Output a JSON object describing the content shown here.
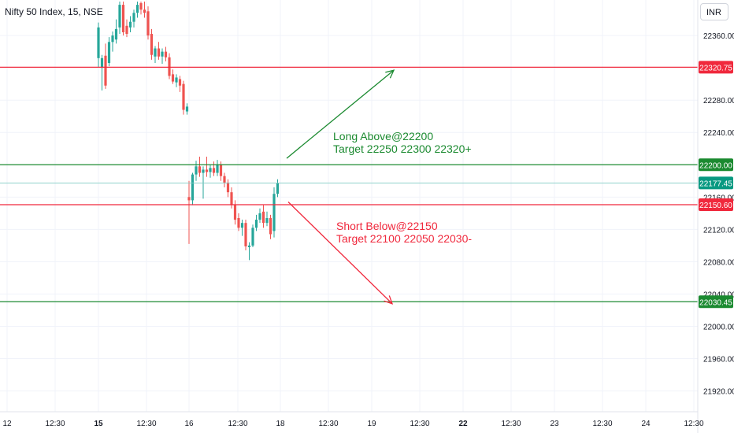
{
  "header": {
    "title": "Nifty 50 Index, 15, NSE",
    "currency": "INR"
  },
  "colors": {
    "up": "#26a69a",
    "down": "#ef5350",
    "red_line": "#f0283c",
    "green_line": "#1b8a30",
    "last_price": "#089981",
    "grid": "#f0f3fa",
    "axis_text": "#131722"
  },
  "chart_data": {
    "type": "candlestick",
    "title": "Nifty 50 Index, 15, NSE",
    "y_axis": {
      "ticks": [
        22360,
        22280,
        22240,
        22160,
        22120,
        22080,
        22040,
        22000,
        21960,
        21920
      ],
      "tick_labels": [
        "22360.00",
        "22280.00",
        "22240.00",
        "22160.00",
        "22120.00",
        "22080.00",
        "22040.00",
        "22000.00",
        "21960.00",
        "21920.00"
      ],
      "range": [
        21905,
        22402
      ]
    },
    "x_axis": {
      "range": [
        0,
        900
      ],
      "ticks": [
        {
          "x": 9,
          "label": "12",
          "bold": false
        },
        {
          "x": 70,
          "label": "12:30",
          "bold": false
        },
        {
          "x": 125,
          "label": "15",
          "bold": true
        },
        {
          "x": 186,
          "label": "12:30",
          "bold": false
        },
        {
          "x": 240,
          "label": "16",
          "bold": false
        },
        {
          "x": 302,
          "label": "12:30",
          "bold": false
        },
        {
          "x": 356,
          "label": "18",
          "bold": false
        },
        {
          "x": 417,
          "label": "12:30",
          "bold": false
        },
        {
          "x": 472,
          "label": "19",
          "bold": false
        },
        {
          "x": 533,
          "label": "12:30",
          "bold": false
        },
        {
          "x": 588,
          "label": "22",
          "bold": true
        },
        {
          "x": 649,
          "label": "12:30",
          "bold": false
        },
        {
          "x": 704,
          "label": "23",
          "bold": false
        },
        {
          "x": 765,
          "label": "12:30",
          "bold": false
        },
        {
          "x": 820,
          "label": "24",
          "bold": false
        },
        {
          "x": 881,
          "label": "12:30",
          "bold": false
        }
      ]
    },
    "candles": [
      {
        "x": 125,
        "o": 22332,
        "h": 22376,
        "l": 22321,
        "c": 22370
      },
      {
        "x": 129.5,
        "o": 22320,
        "h": 22336,
        "l": 22292,
        "c": 22332
      },
      {
        "x": 134,
        "o": 22335,
        "h": 22350,
        "l": 22294,
        "c": 22298
      },
      {
        "x": 138.5,
        "o": 22326,
        "h": 22358,
        "l": 22322,
        "c": 22352
      },
      {
        "x": 143,
        "o": 22352,
        "h": 22365,
        "l": 22340,
        "c": 22360
      },
      {
        "x": 147.5,
        "o": 22355,
        "h": 22380,
        "l": 22350,
        "c": 22368
      },
      {
        "x": 152,
        "o": 22370,
        "h": 22402,
        "l": 22362,
        "c": 22398
      },
      {
        "x": 156.5,
        "o": 22398,
        "h": 22402,
        "l": 22360,
        "c": 22364
      },
      {
        "x": 161,
        "o": 22372,
        "h": 22380,
        "l": 22358,
        "c": 22362
      },
      {
        "x": 165.5,
        "o": 22370,
        "h": 22384,
        "l": 22364,
        "c": 22377
      },
      {
        "x": 170,
        "o": 22377,
        "h": 22392,
        "l": 22370,
        "c": 22388
      },
      {
        "x": 174.5,
        "o": 22388,
        "h": 22402,
        "l": 22382,
        "c": 22398
      },
      {
        "x": 179,
        "o": 22400,
        "h": 22402,
        "l": 22386,
        "c": 22392
      },
      {
        "x": 183.5,
        "o": 22392,
        "h": 22402,
        "l": 22382,
        "c": 22388
      },
      {
        "x": 188,
        "o": 22390,
        "h": 22396,
        "l": 22355,
        "c": 22360
      },
      {
        "x": 192.5,
        "o": 22362,
        "h": 22368,
        "l": 22330,
        "c": 22336
      },
      {
        "x": 197,
        "o": 22334,
        "h": 22347,
        "l": 22326,
        "c": 22344
      },
      {
        "x": 201.5,
        "o": 22344,
        "h": 22352,
        "l": 22330,
        "c": 22334
      },
      {
        "x": 206,
        "o": 22334,
        "h": 22344,
        "l": 22325,
        "c": 22340
      },
      {
        "x": 210.5,
        "o": 22340,
        "h": 22346,
        "l": 22328,
        "c": 22333
      },
      {
        "x": 215,
        "o": 22333,
        "h": 22338,
        "l": 22306,
        "c": 22310
      },
      {
        "x": 219.5,
        "o": 22312,
        "h": 22318,
        "l": 22300,
        "c": 22303
      },
      {
        "x": 224,
        "o": 22302,
        "h": 22312,
        "l": 22296,
        "c": 22308
      },
      {
        "x": 228.5,
        "o": 22306,
        "h": 22310,
        "l": 22290,
        "c": 22298
      },
      {
        "x": 233,
        "o": 22300,
        "h": 22304,
        "l": 22262,
        "c": 22268
      },
      {
        "x": 237.5,
        "o": 22266,
        "h": 22276,
        "l": 22262,
        "c": 22272
      },
      {
        "x": 240,
        "o": 22160,
        "h": 22180,
        "l": 22102,
        "c": 22156
      },
      {
        "x": 244.5,
        "o": 22156,
        "h": 22190,
        "l": 22150,
        "c": 22188
      },
      {
        "x": 249,
        "o": 22188,
        "h": 22205,
        "l": 22180,
        "c": 22198
      },
      {
        "x": 253.5,
        "o": 22198,
        "h": 22210,
        "l": 22185,
        "c": 22190
      },
      {
        "x": 258,
        "o": 22190,
        "h": 22198,
        "l": 22158,
        "c": 22194
      },
      {
        "x": 262.5,
        "o": 22194,
        "h": 22210,
        "l": 22185,
        "c": 22191
      },
      {
        "x": 267,
        "o": 22191,
        "h": 22200,
        "l": 22184,
        "c": 22196
      },
      {
        "x": 271.5,
        "o": 22196,
        "h": 22204,
        "l": 22186,
        "c": 22190
      },
      {
        "x": 276,
        "o": 22190,
        "h": 22206,
        "l": 22186,
        "c": 22200
      },
      {
        "x": 280.5,
        "o": 22200,
        "h": 22204,
        "l": 22180,
        "c": 22186
      },
      {
        "x": 285,
        "o": 22186,
        "h": 22190,
        "l": 22172,
        "c": 22178
      },
      {
        "x": 289.5,
        "o": 22178,
        "h": 22182,
        "l": 22160,
        "c": 22166
      },
      {
        "x": 294,
        "o": 22166,
        "h": 22172,
        "l": 22146,
        "c": 22150
      },
      {
        "x": 298.5,
        "o": 22150,
        "h": 22156,
        "l": 22126,
        "c": 22132
      },
      {
        "x": 303,
        "o": 22134,
        "h": 22140,
        "l": 22118,
        "c": 22122
      },
      {
        "x": 307.5,
        "o": 22122,
        "h": 22132,
        "l": 22112,
        "c": 22128
      },
      {
        "x": 312,
        "o": 22128,
        "h": 22132,
        "l": 22094,
        "c": 22099
      },
      {
        "x": 316.5,
        "o": 22098,
        "h": 22104,
        "l": 22082,
        "c": 22100
      },
      {
        "x": 321,
        "o": 22100,
        "h": 22126,
        "l": 22098,
        "c": 22122
      },
      {
        "x": 325.5,
        "o": 22122,
        "h": 22138,
        "l": 22118,
        "c": 22132
      },
      {
        "x": 330,
        "o": 22132,
        "h": 22146,
        "l": 22128,
        "c": 22140
      },
      {
        "x": 334.5,
        "o": 22142,
        "h": 22150,
        "l": 22122,
        "c": 22128
      },
      {
        "x": 339,
        "o": 22128,
        "h": 22142,
        "l": 22124,
        "c": 22134
      },
      {
        "x": 343.5,
        "o": 22134,
        "h": 22138,
        "l": 22108,
        "c": 22114
      },
      {
        "x": 348,
        "o": 22118,
        "h": 22172,
        "l": 22110,
        "c": 22164
      },
      {
        "x": 352.5,
        "o": 22164,
        "h": 22182,
        "l": 22160,
        "c": 22177
      }
    ],
    "horizontal_lines": [
      {
        "value": 22320.75,
        "label": "22320.75",
        "style": "red"
      },
      {
        "value": 22200.0,
        "label": "22200.00",
        "style": "green"
      },
      {
        "value": 22177.45,
        "label": "22177.45",
        "style": "last"
      },
      {
        "value": 22150.6,
        "label": "22150.60",
        "style": "red"
      },
      {
        "value": 22030.45,
        "label": "22030.45",
        "style": "green"
      }
    ],
    "arrows": [
      {
        "from": [
          364,
          22208
        ],
        "to": [
          500,
          22317
        ],
        "style": "green"
      },
      {
        "from": [
          366,
          22154
        ],
        "to": [
          498,
          22028
        ],
        "style": "red"
      }
    ],
    "annotations": [
      {
        "lines": [
          "Long Above@22200",
          "Target 22250 22300 22320+"
        ],
        "style": "green"
      },
      {
        "lines": [
          "Short Below@22150",
          "Target 22100 22050 22030-"
        ],
        "style": "red"
      }
    ]
  }
}
